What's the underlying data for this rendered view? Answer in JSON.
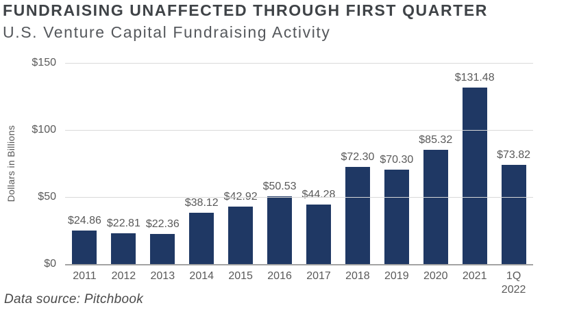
{
  "header": {
    "title": "FUNDRAISING UNAFFECTED THROUGH FIRST QUARTER",
    "subtitle": "U.S. Venture Capital Fundraising Activity"
  },
  "chart_data": {
    "type": "bar",
    "title": "U.S. Venture Capital Fundraising Activity",
    "categories": [
      "2011",
      "2012",
      "2013",
      "2014",
      "2015",
      "2016",
      "2017",
      "2018",
      "2019",
      "2020",
      "2021",
      "1Q 2022"
    ],
    "x_tick_labels": [
      "2011",
      "2012",
      "2013",
      "2014",
      "2015",
      "2016",
      "2017",
      "2018",
      "2019",
      "2020",
      "2021",
      "1Q\n2022"
    ],
    "values": [
      24.86,
      22.81,
      22.36,
      38.12,
      42.92,
      50.53,
      44.28,
      72.3,
      70.3,
      85.32,
      131.48,
      73.82
    ],
    "data_labels": [
      "$24.86",
      "$22.81",
      "$22.36",
      "$38.12",
      "$42.92",
      "$50.53",
      "$44.28",
      "$72.30",
      "$70.30",
      "$85.32",
      "$131.48",
      "$73.82"
    ],
    "xlabel": "",
    "ylabel": "Dollars in Billions",
    "ylim": [
      0,
      150
    ],
    "yticks": [
      {
        "value": 0,
        "label": "$0"
      },
      {
        "value": 50,
        "label": "$50"
      },
      {
        "value": 100,
        "label": "$100"
      },
      {
        "value": 150,
        "label": "$150"
      }
    ],
    "grid": true,
    "legend": false,
    "bar_color": "#1f3864",
    "data_label_color": "#595959",
    "axis_color": "#595959",
    "gridline_color": "#d9d9d9"
  },
  "footer": {
    "data_source": "Data source: Pitchbook"
  }
}
